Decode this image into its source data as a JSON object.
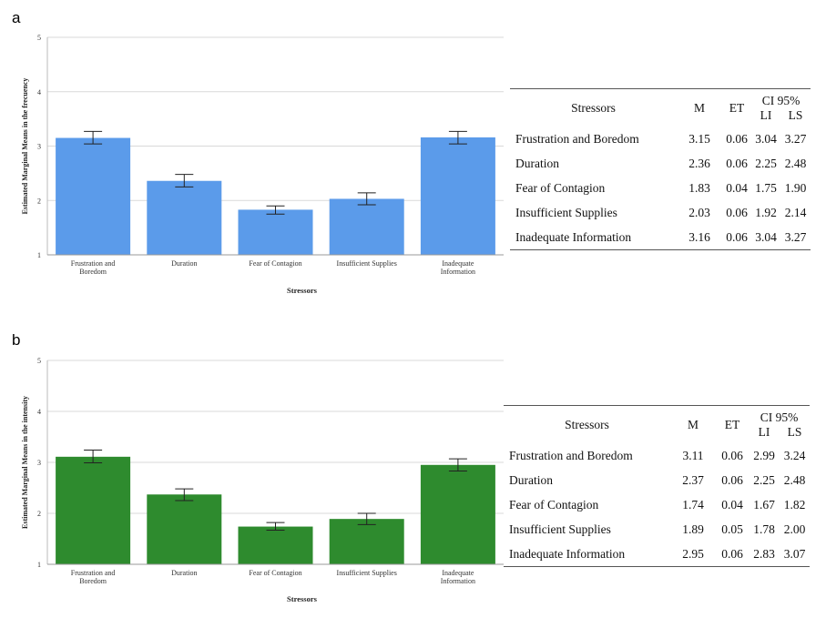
{
  "panels": [
    {
      "label": "a",
      "color": "#5b9bea",
      "table": {
        "header": {
          "stressors": "Stressors",
          "m": "M",
          "et": "ET",
          "ci": "CI 95%",
          "li": "LI",
          "ls": "LS"
        },
        "rows": [
          {
            "name": "Frustration and Boredom",
            "m": "3.15",
            "et": "0.06",
            "li": "3.04",
            "ls": "3.27"
          },
          {
            "name": "Duration",
            "m": "2.36",
            "et": "0.06",
            "li": "2.25",
            "ls": "2.48"
          },
          {
            "name": "Fear of Contagion",
            "m": "1.83",
            "et": "0.04",
            "li": "1.75",
            "ls": "1.90"
          },
          {
            "name": "Insufficient Supplies",
            "m": "2.03",
            "et": "0.06",
            "li": "1.92",
            "ls": "2.14"
          },
          {
            "name": "Inadequate Information",
            "m": "3.16",
            "et": "0.06",
            "li": "3.04",
            "ls": "3.27"
          }
        ]
      }
    },
    {
      "label": "b",
      "color": "#2e8b2e",
      "table": {
        "header": {
          "stressors": "Stressors",
          "m": "M",
          "et": "ET",
          "ci": "CI 95%",
          "li": "LI",
          "ls": "LS"
        },
        "rows": [
          {
            "name": "Frustration and Boredom",
            "m": "3.11",
            "et": "0.06",
            "li": "2.99",
            "ls": "3.24"
          },
          {
            "name": "Duration",
            "m": "2.37",
            "et": "0.06",
            "li": "2.25",
            "ls": "2.48"
          },
          {
            "name": "Fear of Contagion",
            "m": "1.74",
            "et": "0.04",
            "li": "1.67",
            "ls": "1.82"
          },
          {
            "name": "Insufficient Supplies",
            "m": "1.89",
            "et": "0.05",
            "li": "1.78",
            "ls": "2.00"
          },
          {
            "name": "Inadequate Information",
            "m": "2.95",
            "et": "0.06",
            "li": "2.83",
            "ls": "3.07"
          }
        ]
      }
    }
  ],
  "chart_data": [
    {
      "type": "bar",
      "title": "",
      "xlabel": "Stressors",
      "ylabel": "Estimated Marginal Means in the frecuency",
      "ylim": [
        1,
        5
      ],
      "yticks": [
        "1",
        "2",
        "3",
        "4",
        "5"
      ],
      "grid": true,
      "categories": [
        [
          "Frustration and",
          "Boredom"
        ],
        [
          "Duration"
        ],
        [
          "Fear of Contagion"
        ],
        [
          "Insufficient Supplies"
        ],
        [
          "Inadequate",
          "Information"
        ]
      ],
      "values": [
        3.15,
        2.36,
        1.83,
        2.03,
        3.16
      ],
      "ci_low": [
        3.04,
        2.25,
        1.75,
        1.92,
        3.04
      ],
      "ci_high": [
        3.27,
        2.48,
        1.9,
        2.14,
        3.27
      ],
      "color": "#5b9bea"
    },
    {
      "type": "bar",
      "title": "",
      "xlabel": "Stressors",
      "ylabel": "Estimated Marginal Means in the intensity",
      "ylim": [
        1,
        5
      ],
      "yticks": [
        "1",
        "2",
        "3",
        "4",
        "5"
      ],
      "grid": true,
      "categories": [
        [
          "Frustration and",
          "Boredom"
        ],
        [
          "Duration"
        ],
        [
          "Fear of Contagion"
        ],
        [
          "Insufficient Supplies"
        ],
        [
          "Inadequate",
          "Information"
        ]
      ],
      "values": [
        3.11,
        2.37,
        1.74,
        1.89,
        2.95
      ],
      "ci_low": [
        2.99,
        2.25,
        1.67,
        1.78,
        2.83
      ],
      "ci_high": [
        3.24,
        2.48,
        1.82,
        2.0,
        3.07
      ],
      "color": "#2e8b2e"
    }
  ]
}
